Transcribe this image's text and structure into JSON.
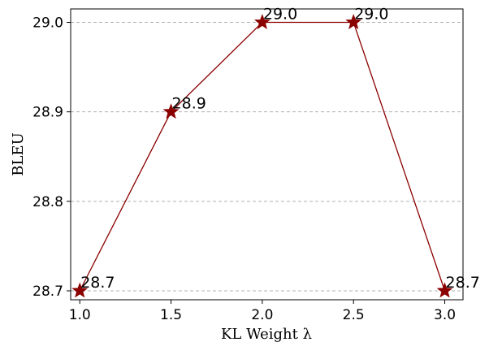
{
  "chart_data": {
    "type": "line",
    "xlabel": "KL Weight λ",
    "ylabel": "BLEU",
    "x": [
      1.0,
      1.5,
      2.0,
      2.5,
      3.0
    ],
    "xticks": [
      "1.0",
      "1.5",
      "2.0",
      "2.5",
      "3.0"
    ],
    "yticks": [
      "28.7",
      "28.8",
      "28.9",
      "29.0"
    ],
    "ytick_values": [
      28.7,
      28.8,
      28.9,
      29.0
    ],
    "xlim": [
      0.95,
      3.1
    ],
    "ylim": [
      28.69,
      29.015
    ],
    "grid": "y-dashed",
    "series": [
      {
        "values": [
          28.7,
          28.9,
          29.0,
          29.0,
          28.7
        ],
        "labels": [
          "28.7",
          "28.9",
          "29.0",
          "29.0",
          "28.7"
        ],
        "color": "#8b0000",
        "marker": "star"
      }
    ]
  }
}
